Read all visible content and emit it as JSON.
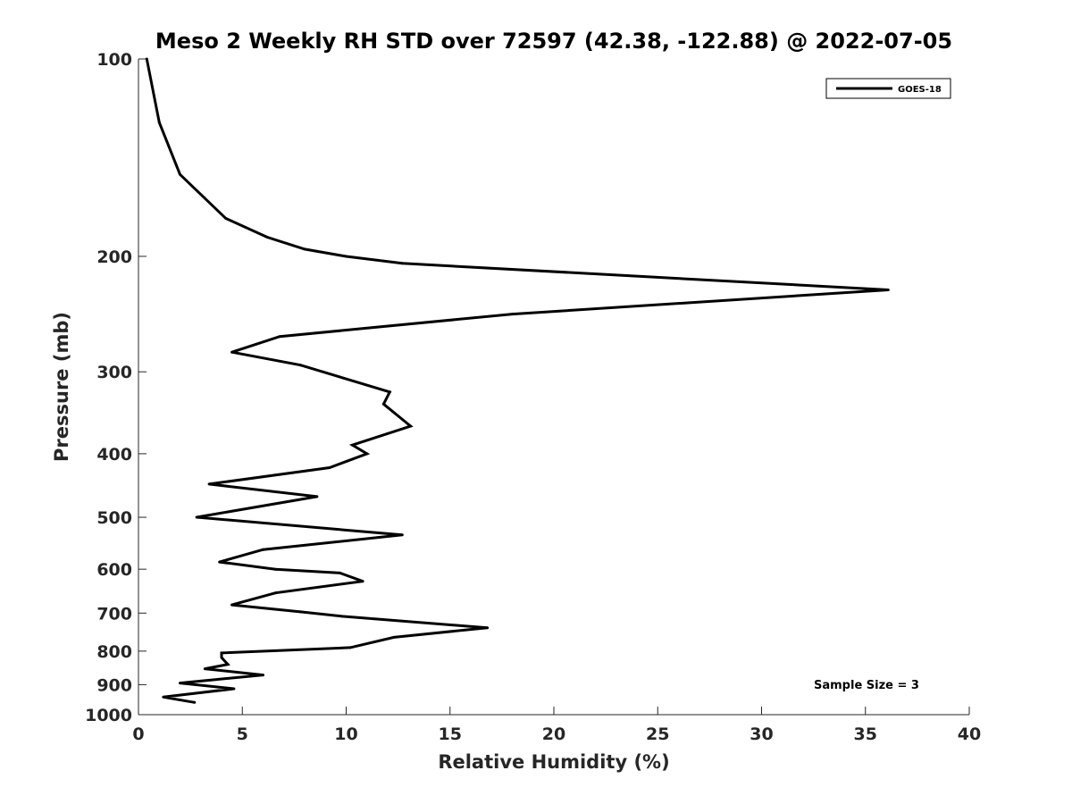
{
  "chart_data": {
    "type": "line",
    "title": "Meso 2 Weekly RH STD over 72597 (42.38, -122.88) @ 2022-07-05",
    "xlabel": "Relative Humidity (%)",
    "ylabel": "Pressure (mb)",
    "xlim": [
      0,
      40
    ],
    "ylim": [
      100,
      1000
    ],
    "yscale": "log",
    "reverse_y": true,
    "grid": false,
    "x_ticks": [
      0,
      5,
      10,
      15,
      20,
      25,
      30,
      35,
      40
    ],
    "y_ticks": [
      100,
      200,
      300,
      400,
      500,
      600,
      700,
      800,
      900,
      1000
    ],
    "legend": {
      "placement": "top-right",
      "entries": [
        "GOES-18"
      ]
    },
    "annotation": "Sample Size = 3",
    "series": [
      {
        "name": "GOES-18",
        "color": "#000000",
        "points": [
          [
            0.4,
            100
          ],
          [
            1.0,
            125
          ],
          [
            2.0,
            150
          ],
          [
            4.2,
            175
          ],
          [
            6.2,
            187
          ],
          [
            8.0,
            195
          ],
          [
            10.0,
            200
          ],
          [
            12.7,
            205
          ],
          [
            36.1,
            225
          ],
          [
            18.0,
            245
          ],
          [
            6.8,
            265
          ],
          [
            4.5,
            280
          ],
          [
            7.8,
            293
          ],
          [
            12.1,
            322
          ],
          [
            11.8,
            336
          ],
          [
            13.1,
            363
          ],
          [
            10.3,
            388
          ],
          [
            11.0,
            400
          ],
          [
            9.2,
            420
          ],
          [
            3.4,
            445
          ],
          [
            8.6,
            465
          ],
          [
            2.8,
            500
          ],
          [
            12.7,
            532
          ],
          [
            6.0,
            560
          ],
          [
            3.9,
            585
          ],
          [
            6.6,
            600
          ],
          [
            9.7,
            608
          ],
          [
            10.8,
            626
          ],
          [
            6.6,
            652
          ],
          [
            4.5,
            680
          ],
          [
            7.8,
            697
          ],
          [
            9.8,
            708
          ],
          [
            16.8,
            737
          ],
          [
            12.3,
            762
          ],
          [
            10.2,
            790
          ],
          [
            4.0,
            805
          ],
          [
            4.0,
            818
          ],
          [
            4.3,
            838
          ],
          [
            3.2,
            851
          ],
          [
            6.0,
            870
          ],
          [
            2.0,
            895
          ],
          [
            4.6,
            913
          ],
          [
            1.2,
            940
          ],
          [
            2.7,
            958
          ]
        ]
      }
    ]
  }
}
